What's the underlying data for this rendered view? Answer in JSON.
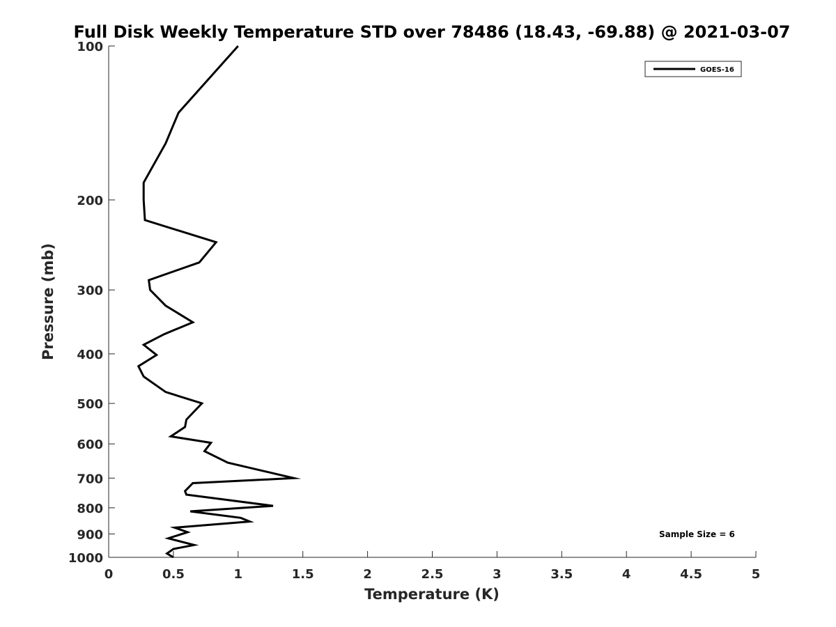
{
  "chart_data": {
    "type": "line",
    "title": "Full Disk Weekly Temperature STD over 78486 (18.43, -69.88) @ 2021-03-07",
    "xlabel": "Temperature (K)",
    "ylabel": "Pressure (mb)",
    "xlim": [
      0,
      5
    ],
    "ylim": [
      100,
      1000
    ],
    "y_scale": "log",
    "y_reversed": true,
    "x_ticks": [
      "0",
      "0.5",
      "1",
      "1.5",
      "2",
      "2.5",
      "3",
      "3.5",
      "4",
      "4.5",
      "5"
    ],
    "y_ticks": [
      "100",
      "200",
      "300",
      "400",
      "500",
      "600",
      "700",
      "800",
      "900",
      "1000"
    ],
    "grid": false,
    "legend_position": "top-right",
    "annotation": "Sample Size = 6",
    "series": [
      {
        "name": "GOES-16",
        "color": "#000000",
        "points": [
          {
            "x": 1.0,
            "y": 100
          },
          {
            "x": 0.54,
            "y": 135
          },
          {
            "x": 0.44,
            "y": 155
          },
          {
            "x": 0.27,
            "y": 185
          },
          {
            "x": 0.27,
            "y": 200
          },
          {
            "x": 0.28,
            "y": 219
          },
          {
            "x": 0.83,
            "y": 242
          },
          {
            "x": 0.7,
            "y": 265
          },
          {
            "x": 0.31,
            "y": 287
          },
          {
            "x": 0.32,
            "y": 300
          },
          {
            "x": 0.44,
            "y": 322
          },
          {
            "x": 0.65,
            "y": 347
          },
          {
            "x": 0.43,
            "y": 366
          },
          {
            "x": 0.27,
            "y": 384
          },
          {
            "x": 0.37,
            "y": 402
          },
          {
            "x": 0.23,
            "y": 423
          },
          {
            "x": 0.27,
            "y": 443
          },
          {
            "x": 0.44,
            "y": 475
          },
          {
            "x": 0.72,
            "y": 500
          },
          {
            "x": 0.6,
            "y": 538
          },
          {
            "x": 0.59,
            "y": 556
          },
          {
            "x": 0.48,
            "y": 580
          },
          {
            "x": 0.79,
            "y": 597
          },
          {
            "x": 0.74,
            "y": 620
          },
          {
            "x": 0.92,
            "y": 653
          },
          {
            "x": 1.43,
            "y": 700
          },
          {
            "x": 0.65,
            "y": 716
          },
          {
            "x": 0.59,
            "y": 742
          },
          {
            "x": 0.6,
            "y": 754
          },
          {
            "x": 1.27,
            "y": 793
          },
          {
            "x": 0.63,
            "y": 813
          },
          {
            "x": 1.02,
            "y": 837
          },
          {
            "x": 1.09,
            "y": 851
          },
          {
            "x": 0.51,
            "y": 875
          },
          {
            "x": 0.61,
            "y": 893
          },
          {
            "x": 0.46,
            "y": 918
          },
          {
            "x": 0.66,
            "y": 946
          },
          {
            "x": 0.5,
            "y": 963
          },
          {
            "x": 0.45,
            "y": 983
          },
          {
            "x": 0.5,
            "y": 1000
          }
        ]
      }
    ]
  }
}
